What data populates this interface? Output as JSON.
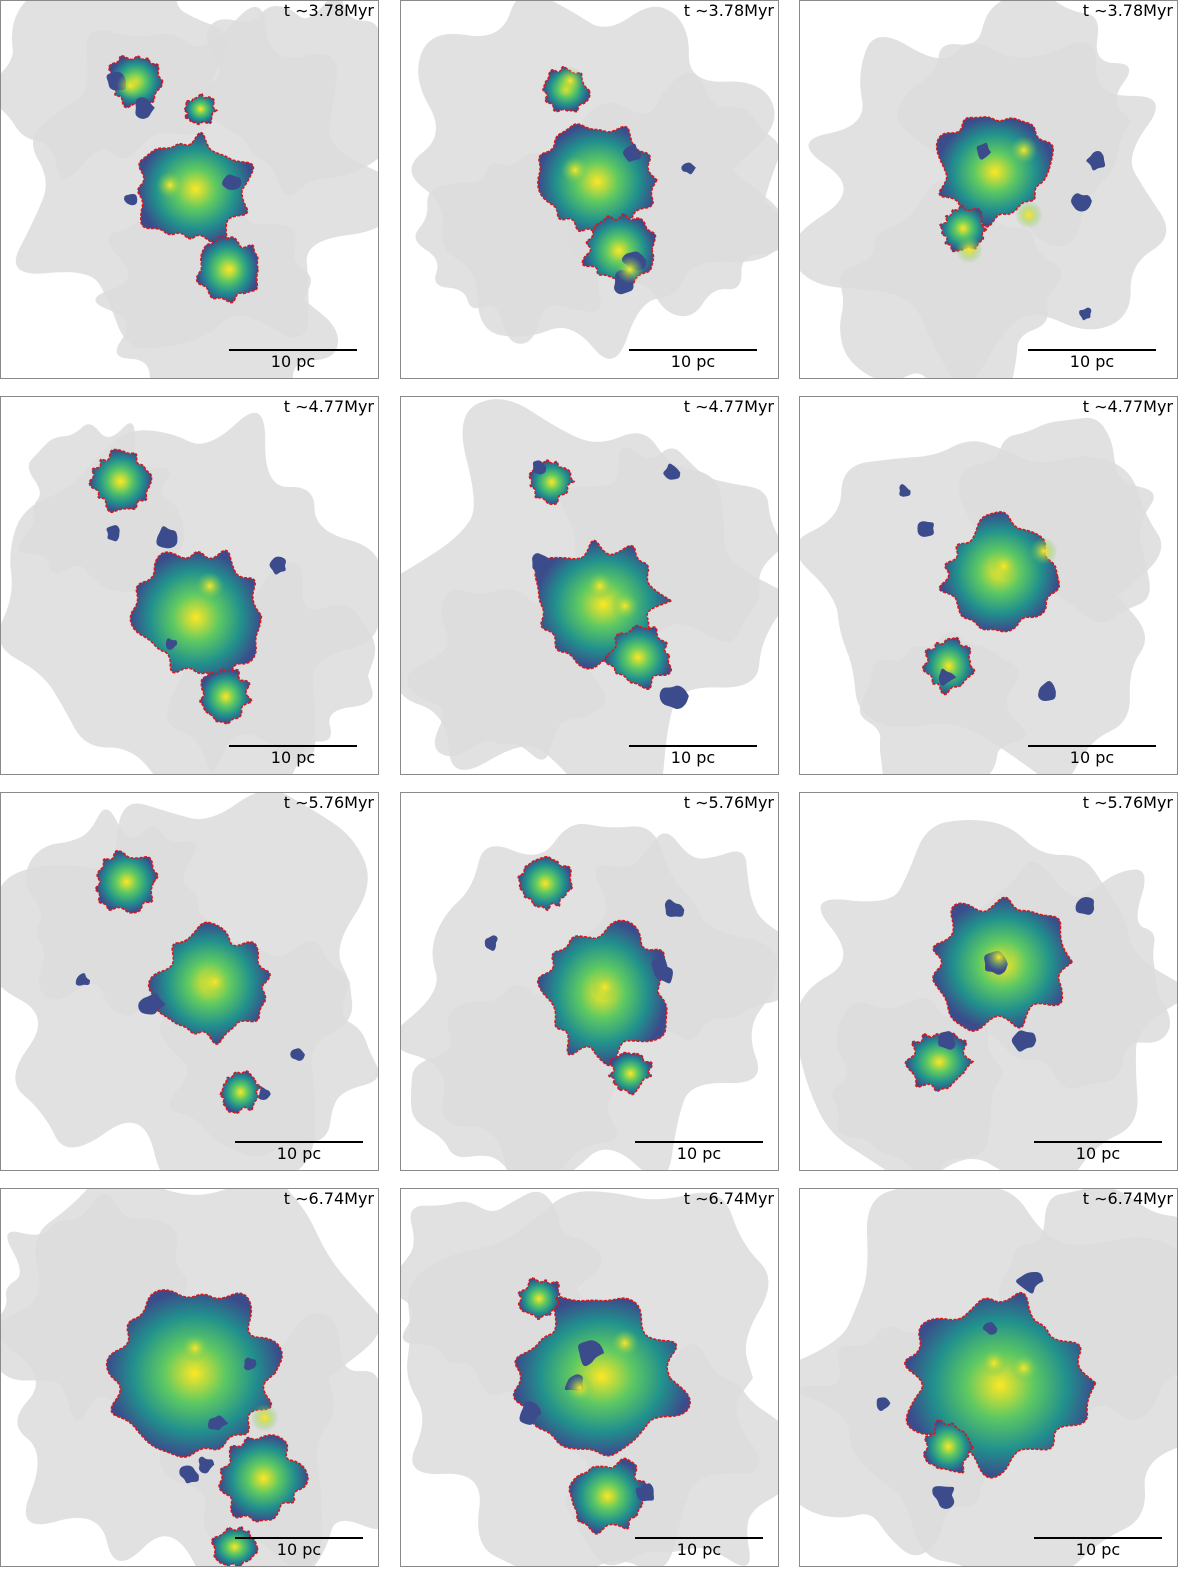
{
  "figure": {
    "panels": [
      {
        "time": "t ∼3.78Myr",
        "scale": "10 pc"
      },
      {
        "time": "t ∼3.78Myr",
        "scale": "10 pc"
      },
      {
        "time": "t ∼3.78Myr",
        "scale": "10 pc"
      },
      {
        "time": "t ∼4.77Myr",
        "scale": "10 pc"
      },
      {
        "time": "t ∼4.77Myr",
        "scale": "10 pc"
      },
      {
        "time": "t ∼4.77Myr",
        "scale": "10 pc"
      },
      {
        "time": "t ∼5.76Myr",
        "scale": "10 pc"
      },
      {
        "time": "t ∼5.76Myr",
        "scale": "10 pc"
      },
      {
        "time": "t ∼5.76Myr",
        "scale": "10 pc"
      },
      {
        "time": "t ∼6.74Myr",
        "scale": "10 pc"
      },
      {
        "time": "t ∼6.74Myr",
        "scale": "10 pc"
      },
      {
        "time": "t ∼6.74Myr",
        "scale": "10 pc"
      }
    ],
    "colors": {
      "background_gas": "#dcdcdc",
      "contour": "#d7191c",
      "low_density": "#3b4b8c",
      "mid_density": "#21908d",
      "high_density": "#5ec962",
      "peak_density": "#fde725"
    }
  }
}
